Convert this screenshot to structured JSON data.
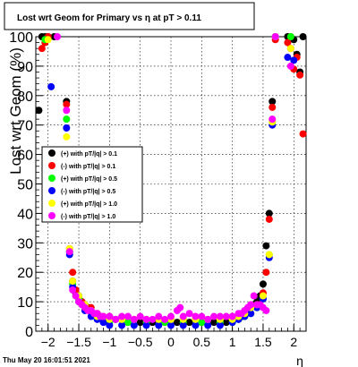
{
  "chart_data": {
    "type": "scatter",
    "title": "Lost wrt Geom for Primary vs  η at pT > 0.11",
    "xlabel": "η",
    "ylabel": "Lost wrt Geom (%)",
    "footer": "Thu May 20 16:01:51 2021",
    "xlim": [
      -2.2,
      2.2
    ],
    "ylim": [
      0,
      100
    ],
    "xticks": [
      -2,
      -1.5,
      -1,
      -0.5,
      0,
      0.5,
      1,
      1.5,
      2
    ],
    "xtick_labels": [
      "−2",
      "−1.5",
      "−1",
      "−0.5",
      "0",
      "0.5",
      "1",
      "1.5",
      "2"
    ],
    "yticks": [
      0,
      10,
      20,
      30,
      40,
      50,
      60,
      70,
      80,
      90,
      100
    ],
    "ytick_labels": [
      "0",
      "10",
      "20",
      "30",
      "40",
      "50",
      "60",
      "70",
      "80",
      "90",
      "100"
    ],
    "grid": true,
    "legend_position": "center-left",
    "series": [
      {
        "name": "(+) with pT/|q| > 0.1",
        "color": "#000000",
        "x": [
          -2.15,
          -2.1,
          -2.05,
          -2.0,
          -1.9,
          -1.7,
          -1.65,
          -1.6,
          -1.55,
          -1.5,
          -1.45,
          -1.4,
          -1.35,
          -1.3,
          -1.25,
          -1.2,
          -1.15,
          -1.1,
          -1.0,
          -0.9,
          -0.7,
          -0.5,
          -0.3,
          -0.1,
          0.1,
          0.3,
          0.5,
          0.7,
          0.9,
          1.0,
          1.1,
          1.15,
          1.2,
          1.25,
          1.3,
          1.35,
          1.4,
          1.45,
          1.5,
          1.55,
          1.6,
          1.65,
          1.7,
          1.9,
          1.95,
          2.0,
          2.05,
          2.1,
          2.15
        ],
        "y": [
          75,
          100,
          100,
          100,
          100,
          78,
          27,
          17,
          13,
          12,
          10,
          9,
          8,
          7,
          6,
          5,
          5,
          4,
          4,
          4,
          3,
          3,
          3,
          3,
          3,
          3,
          3,
          3,
          3,
          4,
          5,
          5,
          6,
          7,
          8,
          9,
          10,
          12,
          16,
          29,
          40,
          78,
          100,
          100,
          100,
          99,
          94,
          88,
          100
        ]
      },
      {
        "name": "(-) with pT/|q| > 0.1",
        "color": "#ff0000",
        "x": [
          -2.1,
          -2.05,
          -2.0,
          -1.7,
          -1.65,
          -1.6,
          -1.55,
          -1.5,
          -1.45,
          -1.4,
          -1.3,
          -1.2,
          -1.1,
          -1.0,
          -0.8,
          -0.6,
          -0.4,
          -0.2,
          0.0,
          0.2,
          0.4,
          0.6,
          0.8,
          1.0,
          1.1,
          1.2,
          1.3,
          1.4,
          1.5,
          1.55,
          1.6,
          1.65,
          1.7,
          1.9,
          1.95,
          2.0,
          2.05,
          2.1,
          2.15
        ],
        "y": [
          96,
          98,
          100,
          77,
          28,
          20,
          14,
          11,
          10,
          9,
          8,
          6,
          5,
          5,
          4,
          4,
          4,
          4,
          4,
          4,
          4,
          4,
          4,
          5,
          5,
          6,
          8,
          9,
          13,
          20,
          38,
          76,
          99,
          98,
          96,
          89,
          93,
          87,
          67
        ]
      },
      {
        "name": "(+) with pT/|q| > 0.5",
        "color": "#00ff00",
        "x": [
          -2.05,
          -1.7,
          -1.65,
          -1.6,
          -1.5,
          -1.4,
          -1.3,
          -1.2,
          -1.1,
          -1.0,
          -0.7,
          -0.4,
          -0.1,
          0.2,
          0.5,
          0.8,
          1.0,
          1.1,
          1.2,
          1.3,
          1.4,
          1.5,
          1.6,
          1.65,
          1.7,
          1.95
        ],
        "y": [
          99,
          72,
          27,
          16,
          11,
          8,
          7,
          5,
          4,
          3,
          3,
          3,
          3,
          3,
          3,
          3,
          3,
          4,
          5,
          6,
          8,
          11,
          26,
          71,
          100,
          100
        ]
      },
      {
        "name": "(-) with pT/|q| > 0.5",
        "color": "#0000ff",
        "x": [
          -1.95,
          -1.7,
          -1.65,
          -1.6,
          -1.5,
          -1.4,
          -1.3,
          -1.2,
          -1.1,
          -1.0,
          -0.8,
          -0.6,
          -0.4,
          -0.2,
          0.0,
          0.2,
          0.4,
          0.6,
          0.8,
          1.0,
          1.1,
          1.2,
          1.3,
          1.4,
          1.5,
          1.6,
          1.65,
          1.7,
          1.9,
          2.0
        ],
        "y": [
          83,
          69,
          26,
          15,
          10,
          7,
          5,
          4,
          3,
          2,
          2,
          2,
          2,
          2,
          2,
          2,
          2,
          2,
          2,
          3,
          4,
          5,
          6,
          8,
          11,
          25,
          70,
          100,
          93,
          92
        ]
      },
      {
        "name": "(+) with pT/|q| > 1.0",
        "color": "#ffff00",
        "x": [
          -2.0,
          -1.7,
          -1.65,
          -1.6,
          -1.5,
          -1.4,
          -1.3,
          -1.2,
          -1.1,
          -1.0,
          -0.8,
          -0.6,
          -0.4,
          -0.2,
          0.0,
          0.2,
          0.4,
          0.6,
          0.8,
          1.0,
          1.1,
          1.2,
          1.3,
          1.4,
          1.5,
          1.6,
          1.65,
          1.7,
          1.95
        ],
        "y": [
          99,
          66,
          28,
          17,
          12,
          9,
          7,
          5,
          5,
          4,
          4,
          4,
          4,
          4,
          4,
          4,
          4,
          4,
          4,
          4,
          5,
          6,
          8,
          9,
          12,
          26,
          71,
          100,
          96
        ]
      },
      {
        "name": "(-) with pT/|q| > 1.0",
        "color": "#ff00ff",
        "x": [
          -1.85,
          -1.7,
          -1.65,
          -1.6,
          -1.55,
          -1.5,
          -1.45,
          -1.4,
          -1.35,
          -1.3,
          -1.25,
          -1.2,
          -1.15,
          -1.1,
          -1.0,
          -0.9,
          -0.8,
          -0.7,
          -0.6,
          -0.5,
          -0.4,
          -0.3,
          -0.2,
          -0.1,
          0.0,
          0.1,
          0.15,
          0.2,
          0.3,
          0.4,
          0.5,
          0.6,
          0.7,
          0.8,
          0.9,
          1.0,
          1.1,
          1.15,
          1.2,
          1.25,
          1.3,
          1.35,
          1.4,
          1.45,
          1.5,
          1.55,
          1.65,
          1.7,
          1.95
        ],
        "y": [
          100,
          75,
          27,
          14,
          12,
          10,
          9,
          8,
          7,
          7,
          6,
          6,
          5,
          5,
          5,
          4,
          5,
          5,
          4,
          5,
          4,
          4,
          5,
          4,
          5,
          7,
          8,
          5,
          6,
          5,
          5,
          4,
          5,
          5,
          5,
          5,
          6,
          6,
          7,
          8,
          9,
          12,
          9,
          9,
          8,
          7,
          72,
          100,
          90
        ]
      }
    ]
  }
}
